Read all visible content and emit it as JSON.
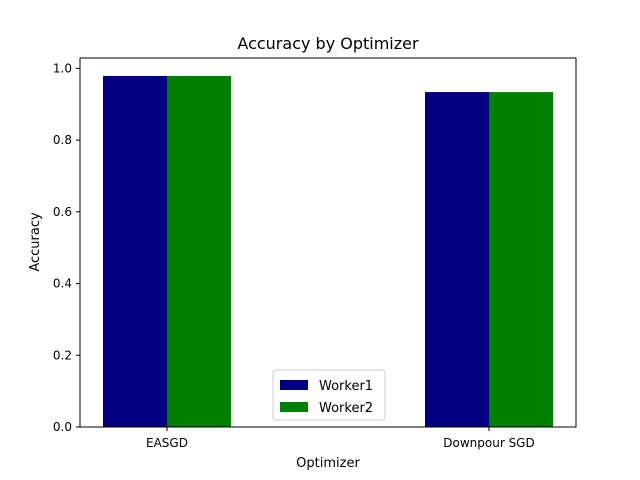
{
  "chart_data": {
    "type": "bar",
    "title": "Accuracy by Optimizer",
    "xlabel": "Optimizer",
    "ylabel": "Accuracy",
    "categories": [
      "EASGD",
      "Downpour SGD"
    ],
    "series": [
      {
        "name": "Worker1",
        "values": [
          0.979,
          0.934
        ],
        "color": "#000080"
      },
      {
        "name": "Worker2",
        "values": [
          0.979,
          0.934
        ],
        "color": "#008000"
      }
    ],
    "ylim": [
      0,
      1.029
    ],
    "yticks": [
      0.0,
      0.2,
      0.4,
      0.6,
      0.8,
      1.0
    ],
    "ytick_labels": [
      "0.0",
      "0.2",
      "0.4",
      "0.6",
      "0.8",
      "1.0"
    ],
    "grid": false,
    "legend_position": "lower center"
  }
}
